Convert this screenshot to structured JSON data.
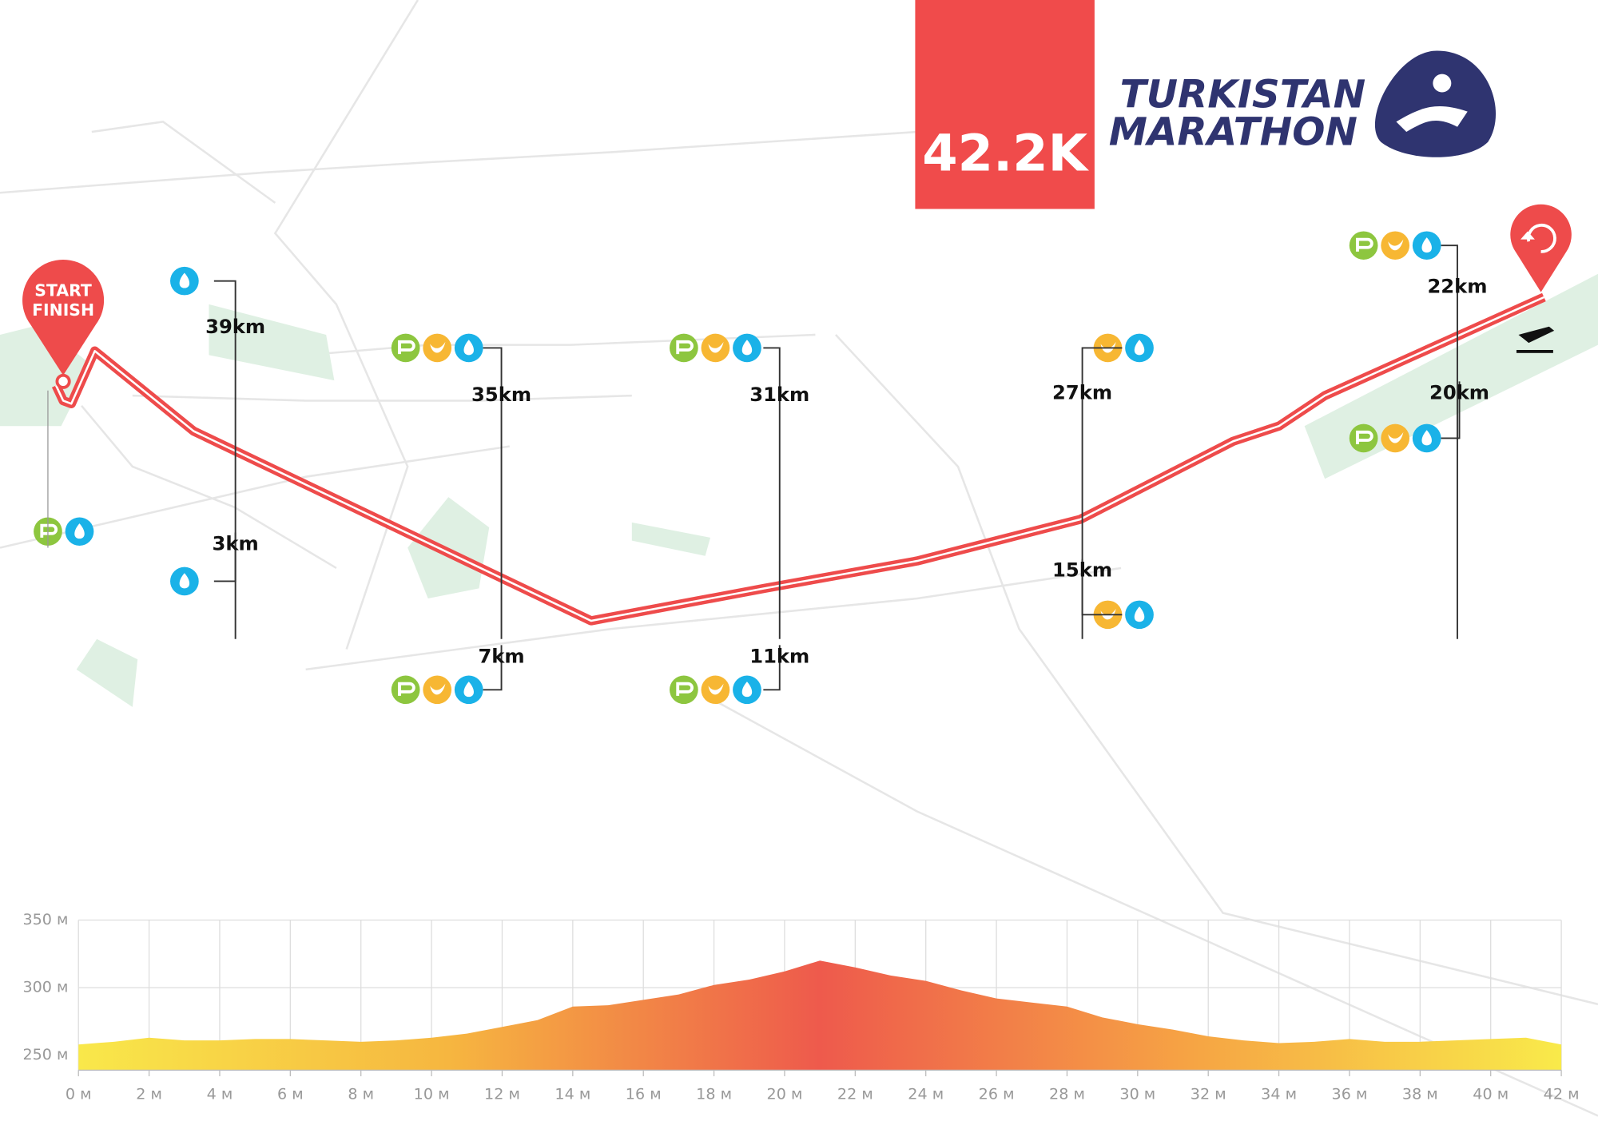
{
  "header": {
    "title": "42.2K",
    "logo_line1": "TURKISTAN",
    "logo_line2": "MARATHON"
  },
  "map": {
    "start_label_1": "START",
    "start_label_2": "FINISH",
    "markers": [
      "39km",
      "3km",
      "35km",
      "7km",
      "31km",
      "11km",
      "27km",
      "15km",
      "22km",
      "20km"
    ]
  },
  "chart_data": {
    "type": "area",
    "x": [
      0,
      1,
      2,
      3,
      4,
      5,
      6,
      7,
      8,
      9,
      10,
      11,
      12,
      13,
      14,
      15,
      16,
      17,
      18,
      19,
      20,
      21,
      22,
      23,
      24,
      25,
      26,
      27,
      28,
      29,
      30,
      31,
      32,
      33,
      34,
      35,
      36,
      37,
      38,
      39,
      40,
      41,
      42
    ],
    "values": [
      258,
      260,
      263,
      261,
      261,
      262,
      262,
      261,
      260,
      261,
      263,
      266,
      271,
      276,
      286,
      287,
      291,
      295,
      302,
      306,
      312,
      320,
      315,
      309,
      305,
      298,
      292,
      289,
      286,
      278,
      273,
      269,
      264,
      261,
      259,
      260,
      262,
      260,
      260,
      261,
      262,
      263,
      258
    ],
    "xlim": [
      0,
      42
    ],
    "xticks": [
      {
        "value": 0,
        "label": "0 м"
      },
      {
        "value": 2,
        "label": "2 м"
      },
      {
        "value": 4,
        "label": "4 м"
      },
      {
        "value": 6,
        "label": "6 м"
      },
      {
        "value": 8,
        "label": "8 м"
      },
      {
        "value": 10,
        "label": "10 м"
      },
      {
        "value": 12,
        "label": "12 м"
      },
      {
        "value": 14,
        "label": "14 м"
      },
      {
        "value": 16,
        "label": "16 м"
      },
      {
        "value": 18,
        "label": "18 м"
      },
      {
        "value": 20,
        "label": "20 м"
      },
      {
        "value": 22,
        "label": "22 м"
      },
      {
        "value": 24,
        "label": "24 м"
      },
      {
        "value": 26,
        "label": "26 м"
      },
      {
        "value": 28,
        "label": "28 м"
      },
      {
        "value": 30,
        "label": "30 м"
      },
      {
        "value": 32,
        "label": "32 м"
      },
      {
        "value": 34,
        "label": "34 м"
      },
      {
        "value": 36,
        "label": "36 м"
      },
      {
        "value": 38,
        "label": "38 м"
      },
      {
        "value": 40,
        "label": "40 м"
      },
      {
        "value": 42,
        "label": "42 м"
      }
    ],
    "ylim": [
      239,
      350
    ],
    "yticks": [
      {
        "value": 250,
        "label": "250 м"
      },
      {
        "value": 300,
        "label": "300 м"
      },
      {
        "value": 350,
        "label": "350 м"
      }
    ],
    "grid": true
  }
}
